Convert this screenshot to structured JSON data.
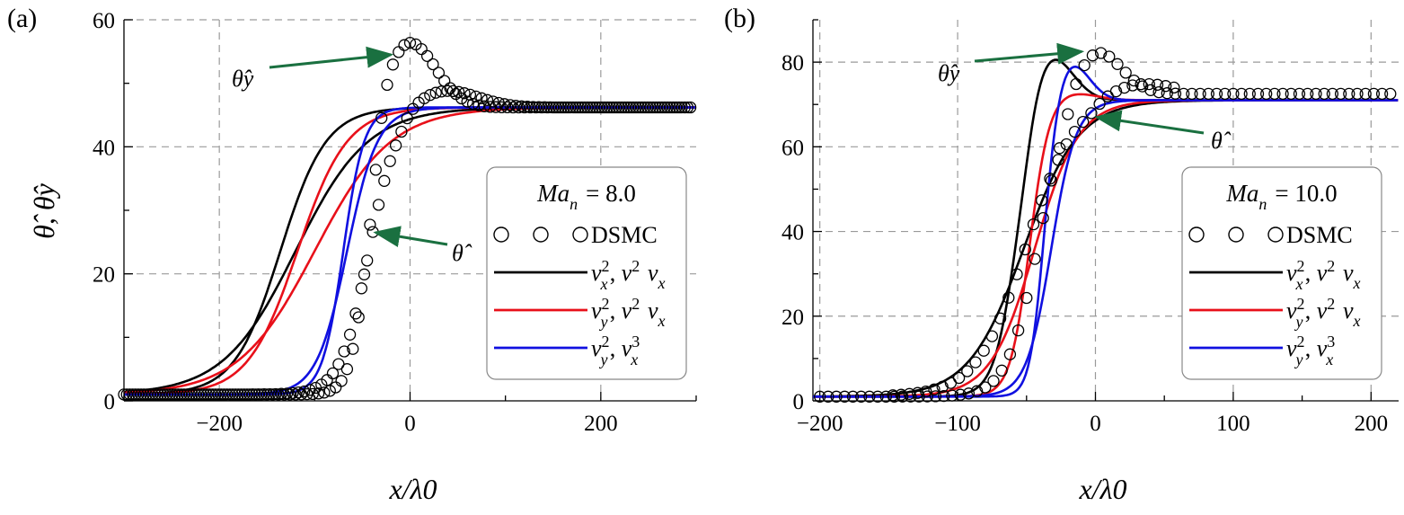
{
  "colors": {
    "black": "#000000",
    "red": "#e8101a",
    "blue": "#1010e0",
    "arrow": "#1a7040",
    "grid": "#9a9a9a"
  },
  "chart_data": [
    {
      "type": "line",
      "panel_label": "(a)",
      "xlabel": "x/λ0",
      "ylabel": "θ̂, θ̂y",
      "xlim": [
        -300,
        300
      ],
      "ylim": [
        0,
        60
      ],
      "xticks": [
        -200,
        0,
        200
      ],
      "xtick_labels": [
        "−200",
        "0",
        "200"
      ],
      "yticks": [
        0,
        20,
        40,
        60
      ],
      "ytick_labels": [
        "0",
        "20",
        "40",
        "60"
      ],
      "grid": true,
      "legend_position": "center-right",
      "legend_title": "Ma_n = 8.0",
      "legend": [
        {
          "name": "DSMC",
          "style": "circles",
          "color_key": "black"
        },
        {
          "name": "v_x^2, v^2 v_x",
          "style": "line",
          "color_key": "black"
        },
        {
          "name": "v_y^2, v^2 v_x",
          "style": "line",
          "color_key": "red"
        },
        {
          "name": "v_y^2, v_x^3",
          "style": "line",
          "color_key": "blue"
        }
      ],
      "params": {
        "low": 1.0,
        "high": 46.2
      },
      "model_curves": [
        {
          "color_key": "black",
          "kind": "theta_y",
          "center": -136,
          "width": 24,
          "overshoot": 0
        },
        {
          "color_key": "black",
          "kind": "theta",
          "center": -120,
          "width": 38,
          "overshoot": 0
        },
        {
          "color_key": "red",
          "kind": "theta_y",
          "center": -118,
          "width": 26,
          "overshoot": 0
        },
        {
          "color_key": "red",
          "kind": "theta",
          "center": -100,
          "width": 40,
          "overshoot": 0
        },
        {
          "color_key": "blue",
          "kind": "theta_y",
          "center": -70,
          "width": 11,
          "overshoot": 0
        },
        {
          "color_key": "blue",
          "kind": "theta",
          "center": -66,
          "width": 16,
          "overshoot": 0
        }
      ],
      "dsmc_series": [
        {
          "name": "θ̂y",
          "center": -45,
          "width": 9,
          "peak": 10.5,
          "peak_x": -2,
          "peak_w": 28,
          "x_start": -300,
          "x_end": 295,
          "step": 6
        },
        {
          "name": "θ̂",
          "center": -43,
          "width": 15,
          "peak": 2.8,
          "peak_x": 35,
          "peak_w": 35,
          "x_start": -300,
          "x_end": 295,
          "step": 6,
          "offset": 3
        }
      ],
      "annotations": [
        {
          "text": "θ̂y",
          "target_x": -20,
          "target_y": 54.5
        },
        {
          "text": "θ̂",
          "target_x": -36,
          "target_y": 26.5
        }
      ]
    },
    {
      "type": "line",
      "panel_label": "(b)",
      "xlabel": "x/λ0",
      "ylabel": "",
      "xlim": [
        -205,
        220
      ],
      "ylim": [
        0,
        90
      ],
      "xticks": [
        -200,
        -100,
        0,
        100,
        200
      ],
      "xtick_labels": [
        "−200",
        "−100",
        "0",
        "100",
        "200"
      ],
      "yticks": [
        0,
        20,
        40,
        60,
        80
      ],
      "ytick_labels": [
        "0",
        "20",
        "40",
        "60",
        "80"
      ],
      "grid": true,
      "legend_position": "center-right",
      "legend_title": "Ma_n = 10.0",
      "legend": [
        {
          "name": "DSMC",
          "style": "circles",
          "color_key": "black"
        },
        {
          "name": "v_x^2, v^2 v_x",
          "style": "line",
          "color_key": "black"
        },
        {
          "name": "v_y^2, v^2 v_x",
          "style": "line",
          "color_key": "red"
        },
        {
          "name": "v_y^2, v_x^3",
          "style": "line",
          "color_key": "blue"
        }
      ],
      "params": {
        "low": 1.0,
        "high": 71.0
      },
      "model_curves": [
        {
          "color_key": "black",
          "kind": "theta_y",
          "center": -58,
          "width": 8,
          "overshoot": 12,
          "peak_x": -34,
          "peak_w": 16
        },
        {
          "color_key": "black",
          "kind": "theta",
          "center": -52,
          "width": 20,
          "overshoot": 0
        },
        {
          "color_key": "red",
          "kind": "theta_y",
          "center": -48,
          "width": 7,
          "overshoot": 2,
          "peak_x": -20,
          "peak_w": 18
        },
        {
          "color_key": "red",
          "kind": "theta",
          "center": -44,
          "width": 16,
          "overshoot": 0
        },
        {
          "color_key": "blue",
          "kind": "theta_y",
          "center": -38,
          "width": 5,
          "overshoot": 9,
          "peak_x": -18,
          "peak_w": 13
        },
        {
          "color_key": "blue",
          "kind": "theta",
          "center": -32,
          "width": 9,
          "overshoot": 0
        }
      ],
      "dsmc_series": [
        {
          "name": "θ̂y",
          "center": -42,
          "width": 11,
          "peak": 11,
          "peak_x": 0,
          "peak_w": 18,
          "high_override": 72.5,
          "x_start": -200,
          "x_end": 215,
          "step": 6
        },
        {
          "name": "θ̂",
          "center": -50,
          "width": 18,
          "peak": 3,
          "peak_x": 30,
          "peak_w": 25,
          "high_override": 72.5,
          "x_start": -150,
          "x_end": 60,
          "step": 6,
          "offset": 3
        }
      ],
      "annotations": [
        {
          "text": "θ̂y",
          "target_x": -10,
          "target_y": 82.5
        },
        {
          "text": "θ̂",
          "target_x": 1,
          "target_y": 67
        }
      ]
    }
  ]
}
